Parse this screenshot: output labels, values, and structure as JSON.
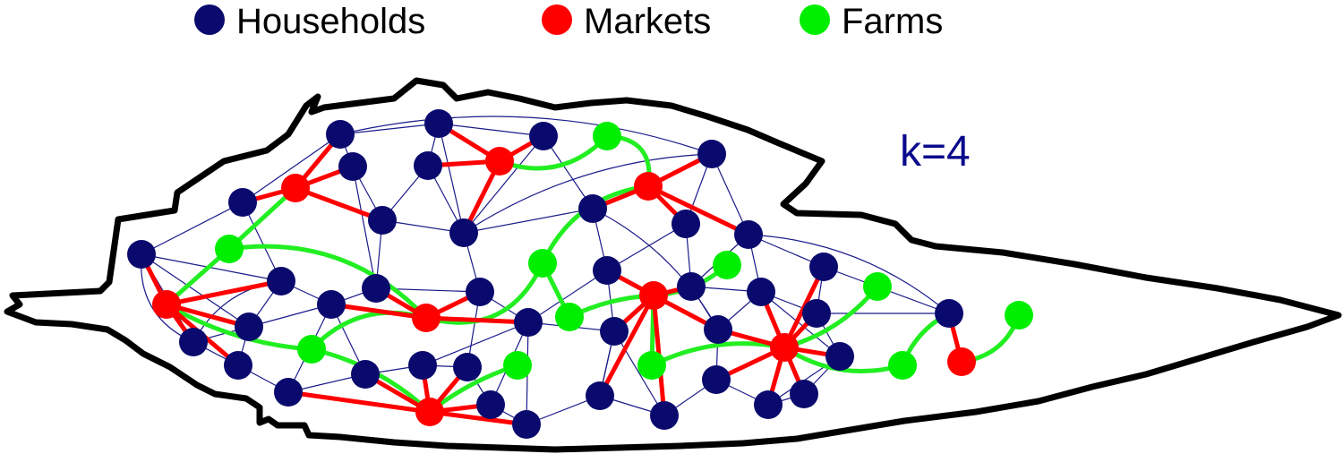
{
  "legend": [
    {
      "label": "Households",
      "color": "#0a0a6e"
    },
    {
      "label": "Markets",
      "color": "#ff0000"
    },
    {
      "label": "Farms",
      "color": "#00ee00"
    }
  ],
  "annotation": {
    "text": "k=4",
    "color": "#0a0a8c"
  },
  "colors": {
    "household": "#0a0a6e",
    "market": "#ff0000",
    "farm": "#00ee00",
    "household_edge": "#1a1a8a",
    "market_edge": "#ff0000",
    "farm_edge": "#22ee22",
    "boundary": "#000000"
  }
}
